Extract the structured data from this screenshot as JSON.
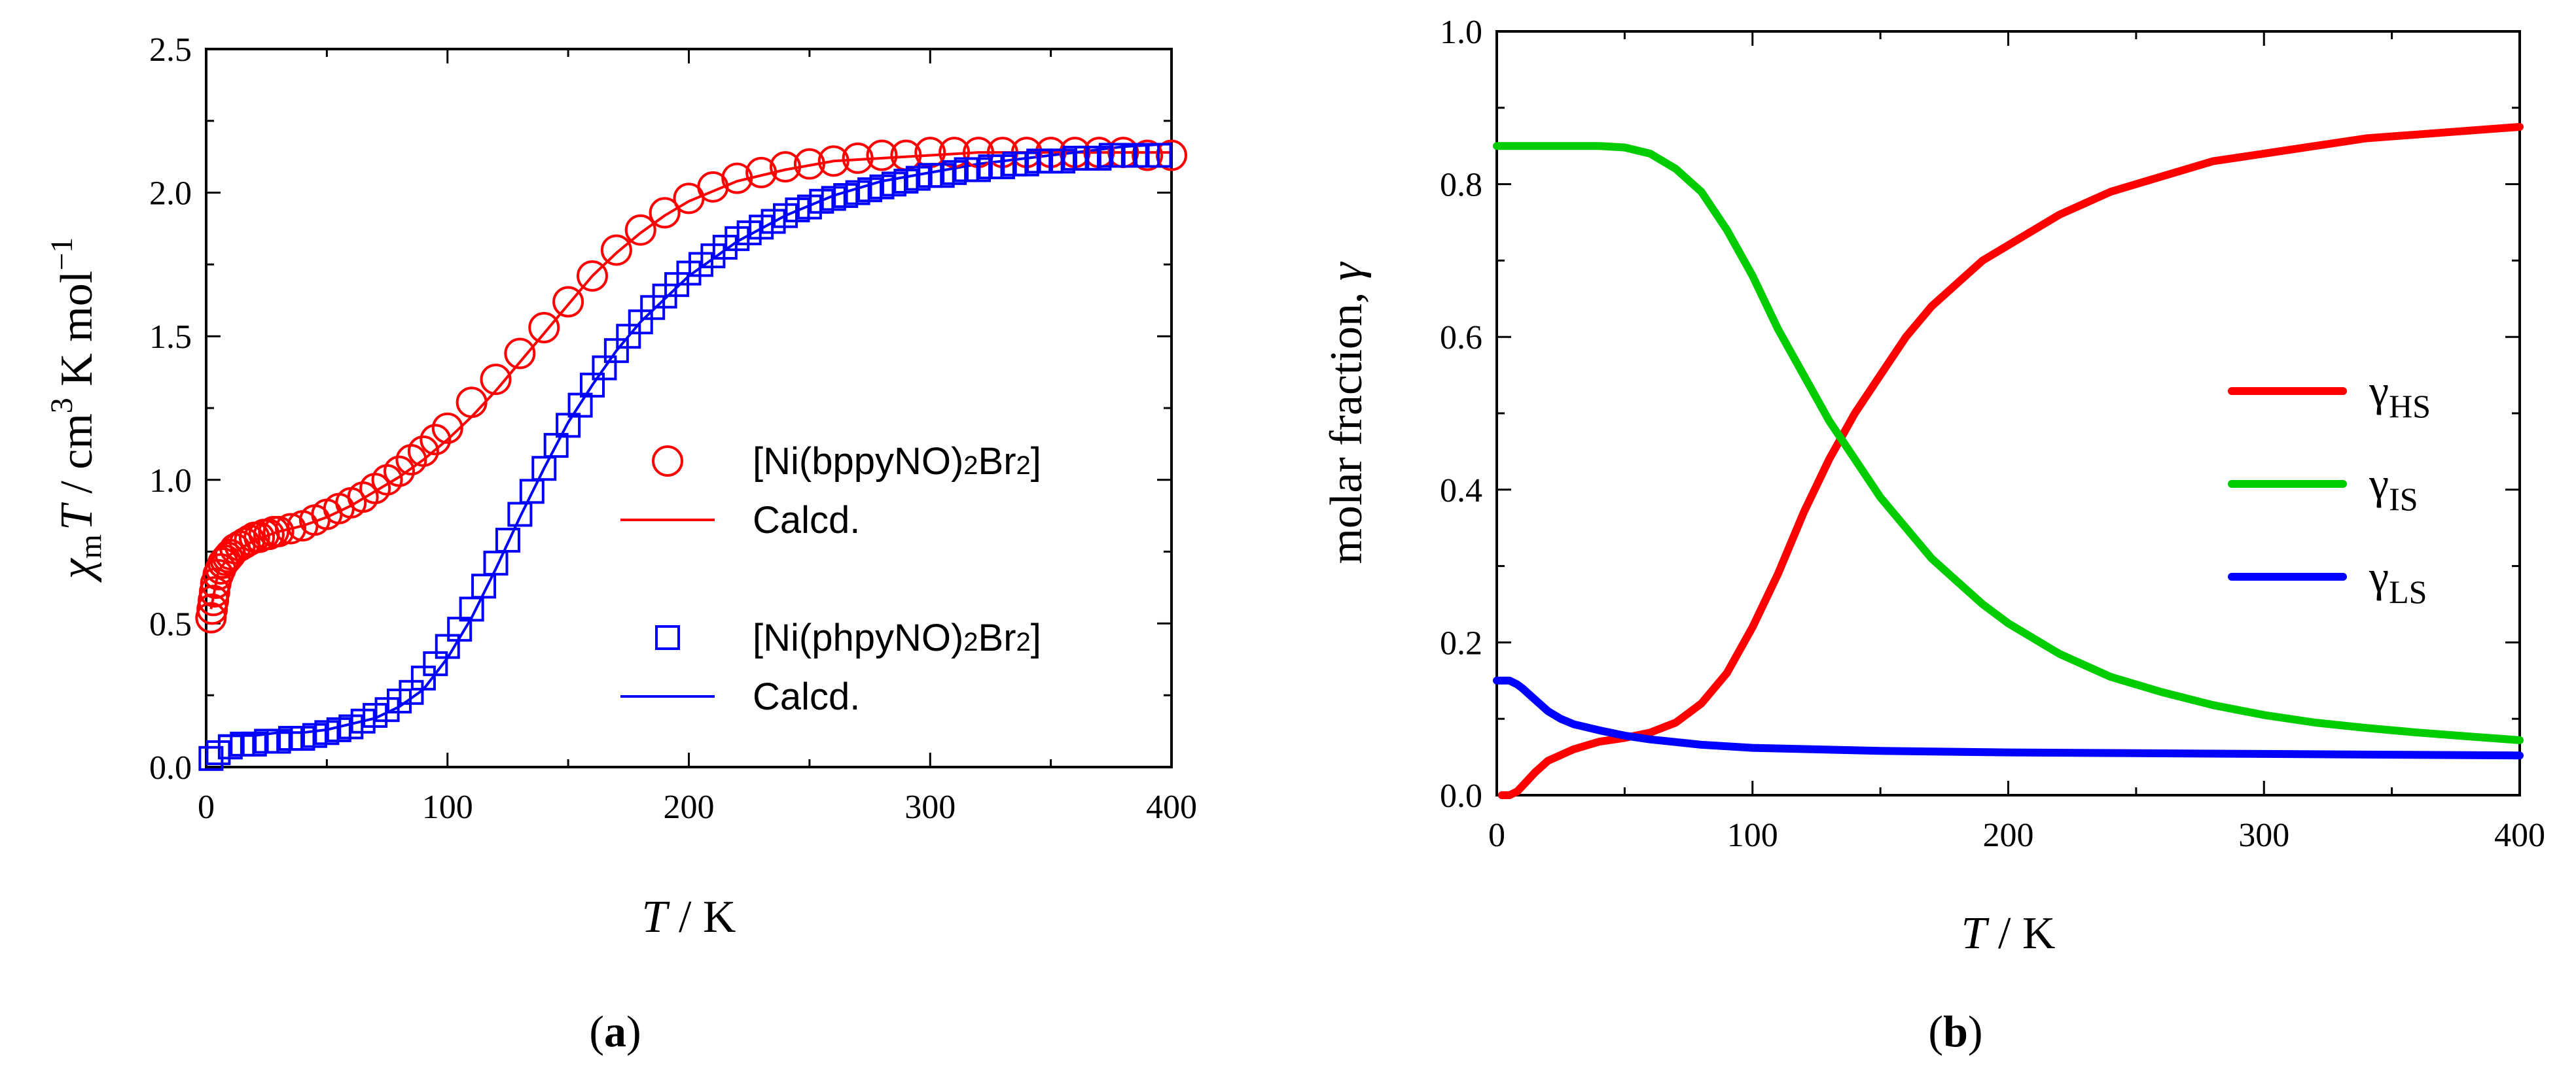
{
  "chart_data": [
    {
      "type": "scatter",
      "panel_label": "a",
      "xlabel": {
        "var": "T",
        "unit": " / K"
      },
      "ylabel": {
        "var": "χ",
        "sub": "m",
        "var2": "T",
        "unit": " / cm",
        "sup": "3",
        "unit2": " K mol",
        "sup2": "−1"
      },
      "xlim": [
        0,
        400
      ],
      "ylim": [
        0,
        2.5
      ],
      "xticks": [
        0,
        100,
        200,
        300,
        400
      ],
      "xtick_labels": [
        "0",
        "100",
        "200",
        "300",
        "400"
      ],
      "yticks": [
        0,
        0.5,
        1.0,
        1.5,
        2.0,
        2.5
      ],
      "ytick_labels": [
        "0.0",
        "0.5",
        "1.0",
        "1.5",
        "2.0",
        "2.5"
      ],
      "grid": false,
      "legend_position": "center-right",
      "colors": {
        "red": "#ff0000",
        "blue": "#0000ff"
      },
      "series": [
        {
          "name": "[Ni(bppyNO)2Br2]",
          "marker": "circle",
          "color": "#ff0000",
          "x": [
            2,
            2.5,
            3,
            3.5,
            4,
            5,
            6,
            7,
            8,
            9,
            10,
            12,
            14,
            16,
            18,
            20,
            22,
            24,
            26,
            28,
            30,
            35,
            40,
            45,
            50,
            55,
            60,
            65,
            70,
            75,
            80,
            85,
            90,
            95,
            100,
            110,
            120,
            130,
            140,
            150,
            160,
            170,
            180,
            190,
            200,
            210,
            220,
            230,
            240,
            250,
            260,
            270,
            280,
            290,
            300,
            310,
            320,
            330,
            340,
            350,
            360,
            370,
            380,
            390,
            400
          ],
          "y": [
            0.52,
            0.55,
            0.58,
            0.61,
            0.64,
            0.67,
            0.69,
            0.71,
            0.72,
            0.73,
            0.74,
            0.76,
            0.77,
            0.78,
            0.79,
            0.8,
            0.8,
            0.81,
            0.81,
            0.82,
            0.82,
            0.83,
            0.84,
            0.86,
            0.88,
            0.9,
            0.92,
            0.94,
            0.97,
            1.0,
            1.03,
            1.07,
            1.1,
            1.14,
            1.18,
            1.27,
            1.35,
            1.44,
            1.53,
            1.62,
            1.71,
            1.8,
            1.87,
            1.93,
            1.98,
            2.02,
            2.05,
            2.07,
            2.09,
            2.1,
            2.11,
            2.12,
            2.13,
            2.13,
            2.14,
            2.14,
            2.14,
            2.14,
            2.14,
            2.14,
            2.14,
            2.14,
            2.14,
            2.13,
            2.13
          ]
        },
        {
          "name": "Calcd.",
          "line": true,
          "color": "#ff0000",
          "x": [
            2,
            5,
            10,
            20,
            30,
            40,
            50,
            60,
            70,
            80,
            90,
            100,
            110,
            120,
            130,
            140,
            150,
            160,
            170,
            180,
            190,
            200,
            220,
            240,
            260,
            280,
            300,
            320,
            340,
            360,
            380,
            400
          ],
          "y": [
            0.55,
            0.68,
            0.74,
            0.79,
            0.82,
            0.84,
            0.87,
            0.91,
            0.96,
            1.01,
            1.07,
            1.14,
            1.22,
            1.31,
            1.41,
            1.51,
            1.61,
            1.71,
            1.79,
            1.86,
            1.92,
            1.97,
            2.04,
            2.08,
            2.11,
            2.12,
            2.13,
            2.14,
            2.14,
            2.14,
            2.14,
            2.14
          ]
        },
        {
          "name": "[Ni(phpyNO)2Br2]",
          "marker": "square",
          "color": "#0000ff",
          "x": [
            2,
            5,
            10,
            15,
            20,
            25,
            30,
            35,
            40,
            45,
            50,
            55,
            60,
            65,
            70,
            75,
            80,
            85,
            90,
            95,
            100,
            105,
            110,
            115,
            120,
            125,
            130,
            135,
            140,
            145,
            150,
            155,
            160,
            165,
            170,
            175,
            180,
            185,
            190,
            195,
            200,
            205,
            210,
            215,
            220,
            225,
            230,
            235,
            240,
            245,
            250,
            255,
            260,
            265,
            270,
            275,
            280,
            285,
            290,
            295,
            300,
            305,
            310,
            315,
            320,
            325,
            330,
            335,
            340,
            345,
            350,
            355,
            360,
            365,
            370,
            375,
            380,
            385,
            390,
            395
          ],
          "y": [
            0.03,
            0.05,
            0.07,
            0.08,
            0.08,
            0.09,
            0.09,
            0.1,
            0.1,
            0.11,
            0.12,
            0.13,
            0.14,
            0.16,
            0.18,
            0.2,
            0.23,
            0.26,
            0.31,
            0.36,
            0.42,
            0.48,
            0.55,
            0.63,
            0.71,
            0.79,
            0.88,
            0.96,
            1.04,
            1.12,
            1.19,
            1.26,
            1.33,
            1.39,
            1.45,
            1.5,
            1.55,
            1.6,
            1.64,
            1.68,
            1.72,
            1.75,
            1.78,
            1.81,
            1.84,
            1.86,
            1.88,
            1.9,
            1.92,
            1.94,
            1.95,
            1.97,
            1.98,
            1.99,
            2.0,
            2.01,
            2.02,
            2.03,
            2.04,
            2.05,
            2.06,
            2.06,
            2.07,
            2.08,
            2.08,
            2.09,
            2.09,
            2.1,
            2.1,
            2.11,
            2.11,
            2.11,
            2.12,
            2.12,
            2.12,
            2.13,
            2.13,
            2.13,
            2.13,
            2.13
          ]
        },
        {
          "name": "Calcd.",
          "line": true,
          "color": "#0000ff",
          "x": [
            5,
            10,
            20,
            30,
            40,
            50,
            60,
            70,
            80,
            90,
            100,
            110,
            120,
            130,
            140,
            150,
            160,
            170,
            180,
            190,
            200,
            220,
            240,
            260,
            280,
            300,
            320,
            340,
            360,
            380,
            400
          ],
          "y": [
            0.11,
            0.11,
            0.11,
            0.12,
            0.12,
            0.13,
            0.15,
            0.17,
            0.21,
            0.27,
            0.38,
            0.52,
            0.69,
            0.87,
            1.04,
            1.2,
            1.33,
            1.45,
            1.55,
            1.63,
            1.71,
            1.83,
            1.92,
            1.99,
            2.04,
            2.07,
            2.1,
            2.12,
            2.14,
            2.16,
            2.17
          ]
        }
      ]
    },
    {
      "type": "line",
      "panel_label": "b",
      "xlabel": {
        "var": "T",
        "unit": " / K"
      },
      "ylabel": {
        "text": "molar fraction, ",
        "var": "γ"
      },
      "xlim": [
        0,
        400
      ],
      "ylim": [
        0,
        1.0
      ],
      "xticks": [
        0,
        100,
        200,
        300,
        400
      ],
      "xtick_labels": [
        "0",
        "100",
        "200",
        "300",
        "400"
      ],
      "yticks": [
        0,
        0.2,
        0.4,
        0.6,
        0.8,
        1.0
      ],
      "ytick_labels": [
        "0.0",
        "0.2",
        "0.4",
        "0.6",
        "0.8",
        "1.0"
      ],
      "grid": false,
      "legend_position": "center-right",
      "series": [
        {
          "name": "γHS",
          "symbol": "γ",
          "sub": "HS",
          "color": "#ff0000",
          "x": [
            2,
            5,
            8,
            10,
            15,
            20,
            30,
            40,
            50,
            60,
            70,
            80,
            90,
            100,
            110,
            120,
            130,
            140,
            150,
            160,
            170,
            180,
            190,
            200,
            220,
            240,
            260,
            280,
            300,
            320,
            340,
            360,
            380,
            400
          ],
          "y": [
            0.0,
            0.0,
            0.005,
            0.012,
            0.03,
            0.045,
            0.06,
            0.07,
            0.075,
            0.082,
            0.095,
            0.12,
            0.16,
            0.22,
            0.29,
            0.37,
            0.44,
            0.5,
            0.55,
            0.6,
            0.64,
            0.67,
            0.7,
            0.72,
            0.76,
            0.79,
            0.81,
            0.83,
            0.84,
            0.85,
            0.86,
            0.865,
            0.87,
            0.875
          ]
        },
        {
          "name": "γIS",
          "symbol": "γ",
          "sub": "IS",
          "color": "#00cc00",
          "x": [
            0,
            20,
            40,
            50,
            60,
            70,
            80,
            90,
            100,
            110,
            120,
            130,
            140,
            150,
            160,
            170,
            180,
            190,
            200,
            220,
            240,
            260,
            280,
            300,
            320,
            340,
            360,
            380,
            400
          ],
          "y": [
            0.85,
            0.85,
            0.85,
            0.848,
            0.84,
            0.82,
            0.79,
            0.74,
            0.68,
            0.61,
            0.55,
            0.49,
            0.44,
            0.39,
            0.35,
            0.31,
            0.28,
            0.25,
            0.225,
            0.185,
            0.155,
            0.135,
            0.118,
            0.105,
            0.095,
            0.088,
            0.082,
            0.077,
            0.072
          ]
        },
        {
          "name": "γLS",
          "symbol": "γ",
          "sub": "LS",
          "color": "#0000ff",
          "x": [
            0,
            5,
            8,
            10,
            15,
            20,
            25,
            30,
            40,
            50,
            60,
            80,
            100,
            150,
            200,
            250,
            300,
            350,
            400
          ],
          "y": [
            0.15,
            0.15,
            0.145,
            0.14,
            0.125,
            0.11,
            0.1,
            0.093,
            0.085,
            0.078,
            0.073,
            0.066,
            0.062,
            0.058,
            0.056,
            0.055,
            0.054,
            0.053,
            0.052
          ]
        }
      ]
    }
  ]
}
